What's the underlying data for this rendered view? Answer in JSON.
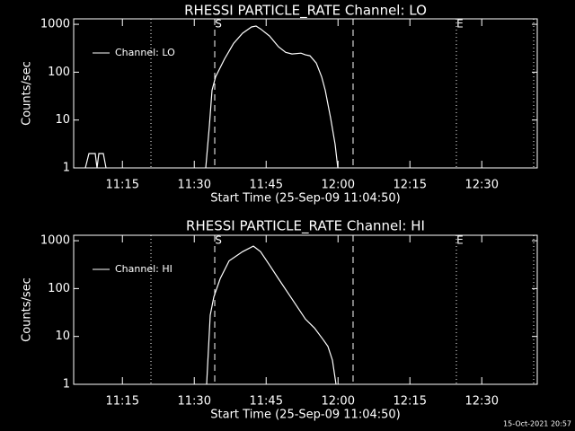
{
  "chart_data": [
    {
      "type": "line",
      "title": "RHESSI PARTICLE_RATE Channel: LO",
      "xlabel": "Start Time (25-Sep-09 11:04:50)",
      "ylabel": "Counts/sec",
      "x": [
        7.27,
        8.02,
        9.33,
        9.71,
        10.08,
        11.02,
        11.58,
        null,
        32.39,
        33.14,
        33.71,
        34.46,
        36.33,
        38.21,
        40.08,
        41.96,
        42.89,
        43.83,
        45.71,
        47.58,
        49.08,
        50.39,
        52.27,
        53.21,
        54.14,
        55.46,
        56.58,
        57.33,
        58.46,
        59.39,
        59.96
      ],
      "series": [
        {
          "name": "Channel: LO",
          "color": "#ffffff",
          "values": [
            1,
            2,
            2,
            1,
            2,
            2,
            1,
            null,
            1,
            7.4,
            42,
            80,
            190,
            400,
            650,
            880,
            920,
            800,
            570,
            340,
            260,
            240,
            250,
            230,
            220,
            155,
            80,
            42,
            11,
            3.1,
            1
          ]
        }
      ],
      "xlim": [
        4.83,
        101.58
      ],
      "xticks": [
        {
          "value": 15,
          "label": "11:15"
        },
        {
          "value": 30,
          "label": "11:30"
        },
        {
          "value": 45,
          "label": "11:45"
        },
        {
          "value": 60,
          "label": "12:00"
        },
        {
          "value": 75,
          "label": "12:15"
        },
        {
          "value": 90,
          "label": "12:30"
        }
      ],
      "ylim": [
        1,
        1300
      ],
      "yticks": [
        1,
        10,
        100,
        1000
      ],
      "log_y": true,
      "legend": "upper left",
      "vlines": [
        {
          "x": 20.96,
          "style": "dotted"
        },
        {
          "x": 34.27,
          "style": "dashed"
        },
        {
          "x": 63.14,
          "style": "dashed"
        },
        {
          "x": 84.7,
          "style": "dotted"
        },
        {
          "x": 100.83,
          "style": "dotted"
        }
      ],
      "markers": [
        {
          "x": 34.27,
          "label": "S"
        },
        {
          "x": 84.7,
          "label": "E"
        }
      ]
    },
    {
      "type": "line",
      "title": "RHESSI PARTICLE_RATE Channel: HI",
      "xlabel": "Start Time (25-Sep-09 11:04:50)",
      "ylabel": "Counts/sec",
      "x": [
        32.58,
        33.33,
        34.08,
        35.39,
        37.27,
        40.08,
        42.33,
        43.83,
        45.71,
        47.58,
        49.46,
        51.33,
        53.21,
        55.08,
        56.96,
        57.89,
        58.83,
        59.58
      ],
      "series": [
        {
          "name": "Channel: HI",
          "color": "#ffffff",
          "values": [
            1,
            28,
            67,
            160,
            380,
            590,
            770,
            590,
            310,
            160,
            84,
            44,
            23,
            15,
            8.4,
            6.2,
            3.2,
            1
          ]
        }
      ],
      "xlim": [
        4.83,
        101.58
      ],
      "xticks": [
        {
          "value": 15,
          "label": "11:15"
        },
        {
          "value": 30,
          "label": "11:30"
        },
        {
          "value": 45,
          "label": "11:45"
        },
        {
          "value": 60,
          "label": "12:00"
        },
        {
          "value": 75,
          "label": "12:15"
        },
        {
          "value": 90,
          "label": "12:30"
        }
      ],
      "ylim": [
        1,
        1300
      ],
      "yticks": [
        1,
        10,
        100,
        1000
      ],
      "log_y": true,
      "legend": "upper left",
      "vlines": [
        {
          "x": 20.96,
          "style": "dotted"
        },
        {
          "x": 34.27,
          "style": "dashed"
        },
        {
          "x": 63.14,
          "style": "dashed"
        },
        {
          "x": 84.7,
          "style": "dotted"
        },
        {
          "x": 100.83,
          "style": "dotted"
        }
      ],
      "markers": [
        {
          "x": 34.27,
          "label": "S"
        },
        {
          "x": 84.7,
          "label": "E"
        }
      ]
    }
  ],
  "footer": "15-Oct-2021 20:57"
}
